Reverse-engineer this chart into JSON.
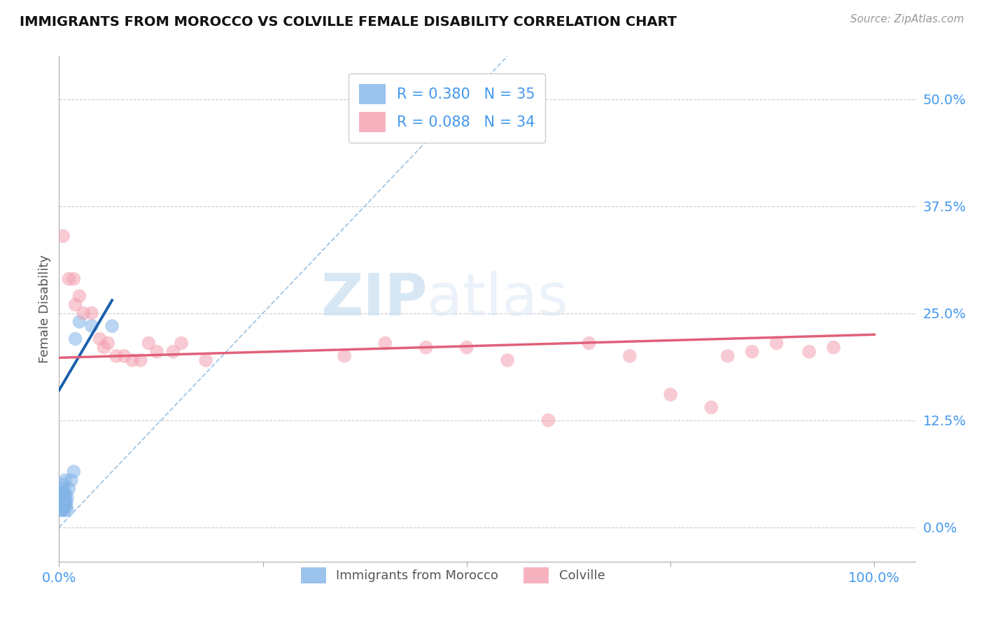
{
  "title": "IMMIGRANTS FROM MOROCCO VS COLVILLE FEMALE DISABILITY CORRELATION CHART",
  "source": "Source: ZipAtlas.com",
  "ylabel": "Female Disability",
  "ytick_vals": [
    0.0,
    0.125,
    0.25,
    0.375,
    0.5
  ],
  "ytick_labels": [
    "0.0%",
    "12.5%",
    "25.0%",
    "37.5%",
    "50.0%"
  ],
  "xtick_vals": [
    0.0,
    0.25,
    0.5,
    0.75,
    1.0
  ],
  "xtick_labels": [
    "0.0%",
    "",
    "",
    "",
    "100.0%"
  ],
  "xlim": [
    0.0,
    1.05
  ],
  "ylim": [
    -0.04,
    0.55
  ],
  "legend_line1": "R = 0.380   N = 35",
  "legend_line2": "R = 0.088   N = 34",
  "legend_label1": "Immigrants from Morocco",
  "legend_label2": "Colville",
  "blue_color": "#82b4e8",
  "pink_color": "#f4a0b0",
  "line_blue": "#1a5fac",
  "line_pink": "#e0607a",
  "diag_color": "#90bce0",
  "watermark_zip": "ZIP",
  "watermark_atlas": "atlas",
  "blue_scatter": [
    [
      0.001,
      0.025
    ],
    [
      0.001,
      0.03
    ],
    [
      0.002,
      0.02
    ],
    [
      0.002,
      0.035
    ],
    [
      0.002,
      0.04
    ],
    [
      0.003,
      0.025
    ],
    [
      0.003,
      0.03
    ],
    [
      0.003,
      0.04
    ],
    [
      0.004,
      0.02
    ],
    [
      0.004,
      0.03
    ],
    [
      0.004,
      0.035
    ],
    [
      0.004,
      0.045
    ],
    [
      0.005,
      0.025
    ],
    [
      0.005,
      0.03
    ],
    [
      0.005,
      0.035
    ],
    [
      0.005,
      0.05
    ],
    [
      0.006,
      0.02
    ],
    [
      0.006,
      0.03
    ],
    [
      0.006,
      0.04
    ],
    [
      0.007,
      0.025
    ],
    [
      0.007,
      0.035
    ],
    [
      0.007,
      0.055
    ],
    [
      0.008,
      0.03
    ],
    [
      0.008,
      0.04
    ],
    [
      0.009,
      0.025
    ],
    [
      0.009,
      0.03
    ],
    [
      0.01,
      0.02
    ],
    [
      0.01,
      0.035
    ],
    [
      0.012,
      0.045
    ],
    [
      0.015,
      0.055
    ],
    [
      0.018,
      0.065
    ],
    [
      0.02,
      0.22
    ],
    [
      0.025,
      0.24
    ],
    [
      0.04,
      0.235
    ],
    [
      0.065,
      0.235
    ]
  ],
  "pink_scatter": [
    [
      0.005,
      0.34
    ],
    [
      0.012,
      0.29
    ],
    [
      0.018,
      0.29
    ],
    [
      0.02,
      0.26
    ],
    [
      0.025,
      0.27
    ],
    [
      0.03,
      0.25
    ],
    [
      0.04,
      0.25
    ],
    [
      0.05,
      0.22
    ],
    [
      0.055,
      0.21
    ],
    [
      0.06,
      0.215
    ],
    [
      0.07,
      0.2
    ],
    [
      0.08,
      0.2
    ],
    [
      0.09,
      0.195
    ],
    [
      0.1,
      0.195
    ],
    [
      0.11,
      0.215
    ],
    [
      0.12,
      0.205
    ],
    [
      0.14,
      0.205
    ],
    [
      0.15,
      0.215
    ],
    [
      0.18,
      0.195
    ],
    [
      0.35,
      0.2
    ],
    [
      0.4,
      0.215
    ],
    [
      0.45,
      0.21
    ],
    [
      0.5,
      0.21
    ],
    [
      0.55,
      0.195
    ],
    [
      0.6,
      0.125
    ],
    [
      0.65,
      0.215
    ],
    [
      0.7,
      0.2
    ],
    [
      0.75,
      0.155
    ],
    [
      0.8,
      0.14
    ],
    [
      0.82,
      0.2
    ],
    [
      0.85,
      0.205
    ],
    [
      0.88,
      0.215
    ],
    [
      0.92,
      0.205
    ],
    [
      0.95,
      0.21
    ]
  ],
  "blue_line_x": [
    0.0,
    0.065
  ],
  "blue_line_y": [
    0.16,
    0.265
  ],
  "pink_line_x": [
    0.0,
    1.0
  ],
  "pink_line_y": [
    0.198,
    0.225
  ],
  "diag_line_x": [
    0.0,
    0.55
  ],
  "diag_line_y": [
    0.0,
    0.55
  ]
}
